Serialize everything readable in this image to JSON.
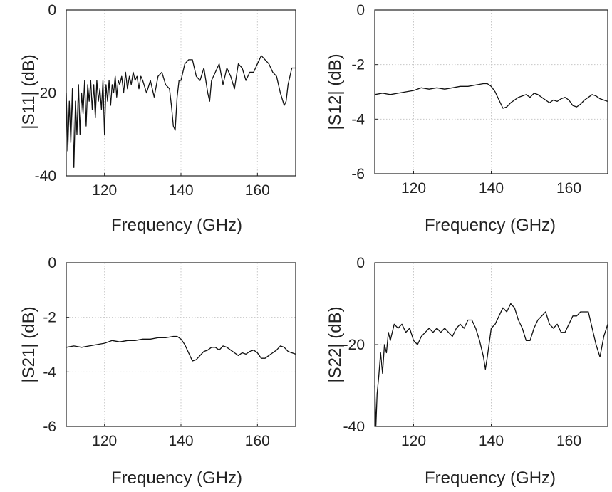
{
  "chart_data": [
    {
      "type": "line",
      "title": "",
      "xlabel": "Frequency (GHz)",
      "ylabel": "|S11| (dB)",
      "xlim": [
        110,
        170
      ],
      "ylim": [
        -40,
        0
      ],
      "xticks": [
        120,
        140,
        160
      ],
      "yticks": [
        0,
        -20,
        -40
      ],
      "grid": true,
      "color": "#111111",
      "series": [
        {
          "x": [
            110,
            110.4,
            110.8,
            111.2,
            111.6,
            112,
            112.4,
            112.8,
            113.2,
            113.6,
            114,
            114.4,
            114.8,
            115.2,
            115.6,
            116,
            116.4,
            116.8,
            117.2,
            117.6,
            118,
            118.4,
            118.8,
            119.2,
            119.6,
            120,
            120.4,
            120.8,
            121.2,
            121.6,
            122,
            122.4,
            122.8,
            123.2,
            123.6,
            124,
            124.5,
            125,
            125.5,
            126,
            126.5,
            127,
            127.5,
            128,
            128.5,
            129,
            129.5,
            130,
            131,
            132,
            133,
            134,
            135,
            136,
            137,
            137.5,
            138,
            138.5,
            139,
            139.5,
            140,
            141,
            142,
            143,
            144,
            145,
            146,
            147,
            147.5,
            148,
            149,
            150,
            151,
            152,
            153,
            154,
            155,
            156,
            157,
            158,
            159,
            160,
            161,
            162,
            163,
            164,
            165,
            166,
            167,
            167.5,
            168,
            169,
            170
          ],
          "values": [
            -20,
            -34,
            -22,
            -32,
            -19,
            -38,
            -22,
            -30,
            -18,
            -30,
            -20,
            -25,
            -17,
            -28,
            -18,
            -22,
            -17,
            -24,
            -18,
            -26,
            -17,
            -22,
            -19,
            -24,
            -17,
            -30,
            -18,
            -22,
            -17,
            -23,
            -18,
            -20,
            -16,
            -21,
            -17,
            -18,
            -16,
            -20,
            -15,
            -19,
            -16,
            -18,
            -15,
            -17,
            -16,
            -19,
            -16,
            -17,
            -20,
            -17,
            -21,
            -16,
            -15,
            -18,
            -19,
            -23,
            -28,
            -29,
            -21,
            -17,
            -17,
            -13,
            -12,
            -12,
            -16,
            -17,
            -14,
            -20,
            -22,
            -17,
            -15,
            -13,
            -18,
            -14,
            -16,
            -19,
            -13,
            -14,
            -17,
            -15,
            -15,
            -13,
            -11,
            -12,
            -13,
            -15,
            -16,
            -20,
            -23,
            -22,
            -18,
            -14,
            -14
          ]
        }
      ]
    },
    {
      "type": "line",
      "title": "",
      "xlabel": "Frequency (GHz)",
      "ylabel": "|S12| (dB)",
      "xlim": [
        110,
        170
      ],
      "ylim": [
        -6,
        0
      ],
      "xticks": [
        120,
        140,
        160
      ],
      "yticks": [
        0,
        -2,
        -4,
        -6
      ],
      "grid": true,
      "color": "#111111",
      "series": [
        {
          "x": [
            110,
            112,
            114,
            116,
            118,
            120,
            122,
            124,
            126,
            128,
            130,
            132,
            134,
            136,
            138,
            139,
            140,
            141,
            142,
            143,
            144,
            145,
            146,
            147,
            148,
            149,
            150,
            151,
            152,
            153,
            154,
            155,
            156,
            157,
            158,
            159,
            160,
            161,
            162,
            163,
            164,
            165,
            166,
            167,
            168,
            169,
            170
          ],
          "values": [
            -3.1,
            -3.05,
            -3.1,
            -3.05,
            -3.0,
            -2.95,
            -2.85,
            -2.9,
            -2.85,
            -2.9,
            -2.85,
            -2.8,
            -2.8,
            -2.75,
            -2.7,
            -2.7,
            -2.8,
            -3.0,
            -3.3,
            -3.6,
            -3.55,
            -3.4,
            -3.3,
            -3.2,
            -3.15,
            -3.1,
            -3.2,
            -3.05,
            -3.1,
            -3.2,
            -3.3,
            -3.4,
            -3.3,
            -3.35,
            -3.25,
            -3.2,
            -3.3,
            -3.5,
            -3.55,
            -3.45,
            -3.3,
            -3.2,
            -3.1,
            -3.15,
            -3.25,
            -3.3,
            -3.35
          ]
        }
      ]
    },
    {
      "type": "line",
      "title": "",
      "xlabel": "Frequency (GHz)",
      "ylabel": "|S21| (dB)",
      "xlim": [
        110,
        170
      ],
      "ylim": [
        -6,
        0
      ],
      "xticks": [
        120,
        140,
        160
      ],
      "yticks": [
        0,
        -2,
        -4,
        -6
      ],
      "grid": true,
      "color": "#111111",
      "series": [
        {
          "x": [
            110,
            112,
            114,
            116,
            118,
            120,
            122,
            124,
            126,
            128,
            130,
            132,
            134,
            136,
            138,
            139,
            140,
            141,
            142,
            143,
            144,
            145,
            146,
            147,
            148,
            149,
            150,
            151,
            152,
            153,
            154,
            155,
            156,
            157,
            158,
            159,
            160,
            161,
            162,
            163,
            164,
            165,
            166,
            167,
            168,
            169,
            170
          ],
          "values": [
            -3.1,
            -3.05,
            -3.1,
            -3.05,
            -3.0,
            -2.95,
            -2.85,
            -2.9,
            -2.85,
            -2.85,
            -2.8,
            -2.8,
            -2.75,
            -2.75,
            -2.7,
            -2.7,
            -2.8,
            -3.0,
            -3.3,
            -3.6,
            -3.55,
            -3.4,
            -3.25,
            -3.2,
            -3.1,
            -3.1,
            -3.2,
            -3.05,
            -3.1,
            -3.2,
            -3.3,
            -3.4,
            -3.3,
            -3.35,
            -3.25,
            -3.2,
            -3.3,
            -3.5,
            -3.5,
            -3.4,
            -3.3,
            -3.2,
            -3.05,
            -3.1,
            -3.25,
            -3.3,
            -3.35
          ]
        }
      ]
    },
    {
      "type": "line",
      "title": "",
      "xlabel": "Frequency (GHz)",
      "ylabel": "|S22| (dB)",
      "xlim": [
        110,
        170
      ],
      "ylim": [
        -40,
        0
      ],
      "xticks": [
        120,
        140,
        160
      ],
      "yticks": [
        0,
        -20,
        -40
      ],
      "grid": true,
      "color": "#111111",
      "series": [
        {
          "x": [
            110,
            110.3,
            110.6,
            111,
            111.5,
            112,
            112.5,
            113,
            113.5,
            114,
            115,
            116,
            117,
            118,
            119,
            120,
            121,
            122,
            123,
            124,
            125,
            126,
            127,
            128,
            129,
            130,
            131,
            132,
            133,
            134,
            135,
            136,
            137,
            138,
            138.5,
            139,
            140,
            141,
            142,
            143,
            144,
            145,
            146,
            147,
            148,
            149,
            150,
            151,
            152,
            153,
            154,
            155,
            156,
            157,
            158,
            159,
            160,
            161,
            162,
            163,
            164,
            165,
            166,
            167,
            168,
            169,
            170
          ],
          "values": [
            -30,
            -40,
            -32,
            -28,
            -22,
            -27,
            -20,
            -22,
            -17,
            -19,
            -15,
            -16,
            -15,
            -17,
            -16,
            -19,
            -20,
            -18,
            -17,
            -16,
            -17,
            -16,
            -17,
            -16,
            -17,
            -18,
            -16,
            -15,
            -16,
            -14,
            -14,
            -16,
            -19,
            -23,
            -26,
            -23,
            -16,
            -15,
            -13,
            -11,
            -12,
            -10,
            -11,
            -14,
            -16,
            -19,
            -19,
            -16,
            -14,
            -13,
            -12,
            -15,
            -16,
            -15,
            -17,
            -17,
            -15,
            -13,
            -13,
            -12,
            -12,
            -12,
            -16,
            -20,
            -23,
            -18,
            -15
          ]
        }
      ]
    }
  ]
}
